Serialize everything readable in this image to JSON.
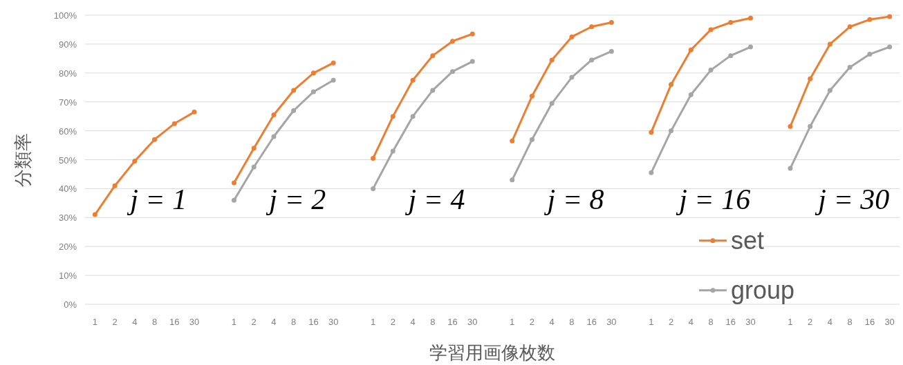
{
  "chart_data": {
    "type": "line",
    "xlabel": "学習用画像枚数",
    "ylabel": "分類率",
    "categories": [
      "1",
      "2",
      "4",
      "8",
      "16",
      "30",
      null,
      "1",
      "2",
      "4",
      "8",
      "16",
      "30",
      null,
      "1",
      "2",
      "4",
      "8",
      "16",
      "30",
      null,
      "1",
      "2",
      "4",
      "8",
      "16",
      "30",
      null,
      "1",
      "2",
      "4",
      "8",
      "16",
      "30",
      null,
      "1",
      "2",
      "4",
      "8",
      "16",
      "30"
    ],
    "series": [
      {
        "name": "set",
        "color": "#ed7d31",
        "values": [
          31,
          41,
          49.5,
          57,
          62.5,
          66.5,
          null,
          42,
          54,
          65.5,
          74,
          80,
          83.5,
          null,
          50.5,
          65,
          77.5,
          86,
          91,
          93.5,
          null,
          56.5,
          72,
          84.5,
          92.5,
          96,
          97.5,
          null,
          59.5,
          76,
          88,
          95,
          97.5,
          99,
          null,
          61.5,
          78,
          90,
          96,
          98.5,
          99.5
        ]
      },
      {
        "name": "group",
        "color": "#a5a5a5",
        "values": [
          null,
          null,
          null,
          null,
          null,
          null,
          null,
          36,
          47.5,
          58,
          67,
          73.5,
          77.5,
          null,
          40,
          53,
          65,
          74,
          80.5,
          84,
          null,
          43,
          57,
          69.5,
          78.5,
          84.5,
          87.5,
          null,
          45.5,
          60,
          72.5,
          81,
          86,
          89,
          null,
          47,
          61.5,
          74,
          82,
          86.5,
          89
        ]
      }
    ],
    "ylim": [
      0,
      100
    ],
    "yticks": [
      {
        "value": 0,
        "label": "0%"
      },
      {
        "value": 10,
        "label": "10%"
      },
      {
        "value": 20,
        "label": "20%"
      },
      {
        "value": 30,
        "label": "30%"
      },
      {
        "value": 40,
        "label": "40%"
      },
      {
        "value": 50,
        "label": "50%"
      },
      {
        "value": 60,
        "label": "60%"
      },
      {
        "value": 70,
        "label": "70%"
      },
      {
        "value": 80,
        "label": "80%"
      },
      {
        "value": 90,
        "label": "90%"
      },
      {
        "value": 100,
        "label": "100%"
      }
    ],
    "grid": "y",
    "legend": "bottom right",
    "marker": "circle",
    "annotations": [
      "j = 1",
      "j = 2",
      "j = 4",
      "j = 8",
      "j = 16",
      "j = 30"
    ]
  }
}
